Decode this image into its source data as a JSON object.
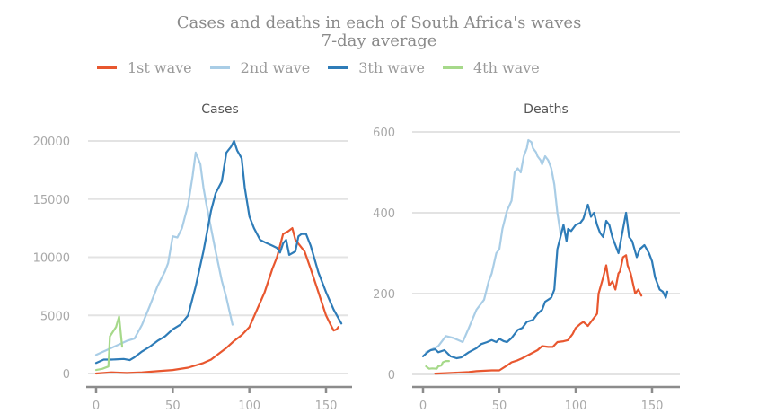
{
  "title": "Cases and deaths in each of South Africa's waves",
  "subtitle": "7-day average",
  "legend": [
    {
      "label": "1st wave",
      "color": "#e8572f"
    },
    {
      "label": "2nd wave",
      "color": "#a9cde6"
    },
    {
      "label": "3th wave",
      "color": "#2e7cb8"
    },
    {
      "label": "4th wave",
      "color": "#a6d98a"
    }
  ],
  "chart_data": [
    {
      "type": "line",
      "title": "Cases",
      "xlabel": "",
      "ylabel": "",
      "xlim": [
        0,
        170
      ],
      "ylim": [
        0,
        20000
      ],
      "xticks": [
        0,
        50,
        100,
        150
      ],
      "yticks": [
        0,
        5000,
        10000,
        15000,
        20000
      ],
      "grid": true,
      "legend": "top",
      "series": [
        {
          "name": "1st wave",
          "color": "#e8572f",
          "x": [
            0,
            10,
            20,
            30,
            40,
            50,
            60,
            70,
            75,
            80,
            85,
            90,
            95,
            100,
            105,
            110,
            115,
            118,
            122,
            125,
            128,
            130,
            133,
            136,
            140,
            145,
            150,
            153,
            155,
            157,
            158
          ],
          "y": [
            0,
            100,
            50,
            100,
            200,
            300,
            500,
            900,
            1200,
            1700,
            2200,
            2800,
            3300,
            4000,
            5500,
            7000,
            9000,
            10000,
            12000,
            12200,
            12500,
            11500,
            11000,
            10500,
            9000,
            7000,
            5000,
            4200,
            3700,
            3800,
            4000
          ]
        },
        {
          "name": "2nd wave",
          "color": "#a9cde6",
          "x": [
            0,
            10,
            20,
            25,
            30,
            35,
            40,
            45,
            47,
            50,
            53,
            56,
            60,
            63,
            65,
            68,
            70,
            72,
            75,
            78,
            82,
            85,
            89
          ],
          "y": [
            1600,
            2200,
            2800,
            3000,
            4200,
            5800,
            7500,
            8800,
            9500,
            11800,
            11700,
            12500,
            14500,
            17000,
            19000,
            18000,
            16000,
            14500,
            12500,
            10500,
            8000,
            6500,
            4200
          ]
        },
        {
          "name": "3th wave",
          "color": "#2e7cb8",
          "x": [
            0,
            5,
            10,
            18,
            22,
            25,
            30,
            35,
            40,
            45,
            50,
            55,
            60,
            65,
            70,
            75,
            78,
            82,
            85,
            88,
            90,
            92,
            95,
            97,
            100,
            103,
            107,
            110,
            115,
            118,
            120,
            122,
            124,
            126,
            130,
            132,
            134,
            137,
            140,
            145,
            150,
            155,
            160
          ],
          "y": [
            900,
            1200,
            1200,
            1250,
            1150,
            1400,
            1900,
            2300,
            2800,
            3200,
            3800,
            4200,
            5000,
            7500,
            10500,
            14000,
            15500,
            16500,
            19000,
            19500,
            20000,
            19200,
            18500,
            16000,
            13500,
            12500,
            11500,
            11300,
            11000,
            10800,
            10400,
            11200,
            11500,
            10200,
            10500,
            11800,
            12000,
            12000,
            11000,
            8700,
            7000,
            5500,
            4300
          ]
        },
        {
          "name": "4th wave",
          "color": "#a6d98a",
          "x": [
            0,
            4,
            8,
            9,
            13,
            15,
            17
          ],
          "y": [
            300,
            400,
            600,
            3200,
            4000,
            4900,
            2300
          ]
        }
      ]
    },
    {
      "type": "line",
      "title": "Deaths",
      "xlabel": "",
      "ylabel": "",
      "xlim": [
        0,
        170
      ],
      "ylim": [
        0,
        600
      ],
      "xticks": [
        0,
        50,
        100,
        150
      ],
      "yticks": [
        0,
        200,
        400,
        600
      ],
      "grid": true,
      "legend": "top",
      "series": [
        {
          "name": "1st wave",
          "color": "#e8572f",
          "x": [
            8,
            15,
            20,
            30,
            35,
            45,
            50,
            55,
            58,
            62,
            65,
            70,
            75,
            78,
            82,
            85,
            88,
            92,
            95,
            98,
            100,
            103,
            105,
            108,
            112,
            114,
            115,
            118,
            120,
            122,
            124,
            126,
            128,
            129,
            131,
            133,
            134,
            136,
            139,
            141,
            143
          ],
          "y": [
            2,
            3,
            4,
            6,
            8,
            10,
            10,
            22,
            30,
            35,
            40,
            50,
            60,
            70,
            68,
            68,
            80,
            82,
            85,
            100,
            115,
            125,
            130,
            120,
            140,
            150,
            200,
            240,
            270,
            220,
            230,
            210,
            250,
            255,
            290,
            295,
            270,
            250,
            200,
            210,
            195
          ]
        },
        {
          "name": "2nd wave",
          "color": "#a9cde6",
          "x": [
            2,
            5,
            10,
            15,
            20,
            26,
            30,
            35,
            40,
            43,
            45,
            48,
            50,
            52,
            55,
            58,
            60,
            62,
            64,
            66,
            68,
            69,
            71,
            72,
            74,
            75,
            77,
            78,
            80,
            82,
            84,
            86,
            88,
            90
          ],
          "y": [
            55,
            60,
            70,
            95,
            90,
            80,
            115,
            160,
            185,
            230,
            250,
            300,
            310,
            360,
            405,
            430,
            500,
            510,
            500,
            540,
            560,
            580,
            575,
            560,
            550,
            540,
            530,
            520,
            540,
            530,
            510,
            470,
            400,
            350
          ]
        },
        {
          "name": "3th wave",
          "color": "#2e7cb8",
          "x": [
            0,
            3,
            5,
            8,
            10,
            14,
            18,
            22,
            25,
            30,
            35,
            38,
            42,
            45,
            48,
            50,
            53,
            55,
            58,
            62,
            65,
            68,
            72,
            75,
            78,
            80,
            82,
            84,
            86,
            88,
            90,
            92,
            94,
            95,
            97,
            100,
            103,
            105,
            107,
            108,
            110,
            112,
            114,
            116,
            118,
            120,
            122,
            124,
            126,
            128,
            130,
            133,
            135,
            137,
            140,
            142,
            145,
            148,
            150,
            152,
            155,
            157,
            159,
            160
          ],
          "y": [
            45,
            55,
            60,
            62,
            55,
            60,
            45,
            40,
            42,
            55,
            65,
            75,
            80,
            85,
            80,
            88,
            82,
            80,
            90,
            110,
            115,
            130,
            135,
            150,
            160,
            180,
            185,
            190,
            210,
            310,
            340,
            370,
            330,
            360,
            355,
            370,
            375,
            385,
            410,
            420,
            390,
            400,
            370,
            350,
            340,
            380,
            370,
            340,
            320,
            300,
            340,
            400,
            340,
            330,
            290,
            310,
            320,
            300,
            280,
            240,
            210,
            205,
            190,
            205
          ]
        },
        {
          "name": "4th wave",
          "color": "#a6d98a",
          "x": [
            2,
            4,
            6,
            9,
            10,
            12,
            13,
            15,
            17
          ],
          "y": [
            20,
            14,
            15,
            14,
            20,
            22,
            30,
            33,
            33
          ]
        }
      ]
    }
  ]
}
